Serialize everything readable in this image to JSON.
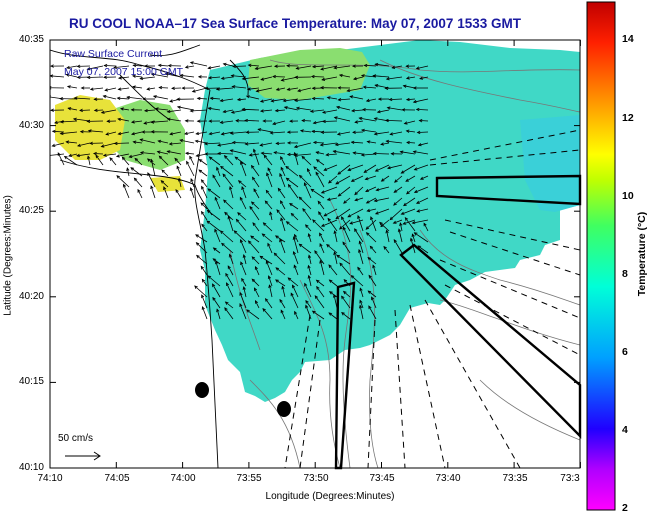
{
  "title": "RU COOL  NOAA–17  Sea Surface Temperature:  May 07, 2007 1533 GMT",
  "legend": {
    "line1": "Raw Surface Current",
    "line2": "May 07, 2007 15:00 GMT"
  },
  "scale_arrow_label": "50 cm/s",
  "x_axis": {
    "title": "Longitude (Degrees:Minutes)",
    "ticks": [
      "74:10",
      "74:05",
      "74:00",
      "73:55",
      "73:50",
      "73:45",
      "73:40",
      "73:35",
      "73:3"
    ]
  },
  "y_axis": {
    "title": "Latitude (Degrees:Minutes)",
    "ticks": [
      "40:35",
      "40:30",
      "40:25",
      "40:20",
      "40:15",
      "40:10"
    ]
  },
  "colorbar": {
    "title": "Temperature (°C)",
    "ticks": [
      "14",
      "12",
      "10",
      "8",
      "6",
      "4",
      "2"
    ],
    "range": [
      2,
      15
    ]
  },
  "colors": {
    "title": "#1a1aa0",
    "water_main": "#3fd6c4",
    "water_warm": "#e6e23a",
    "water_green": "#7fdc7a"
  }
}
